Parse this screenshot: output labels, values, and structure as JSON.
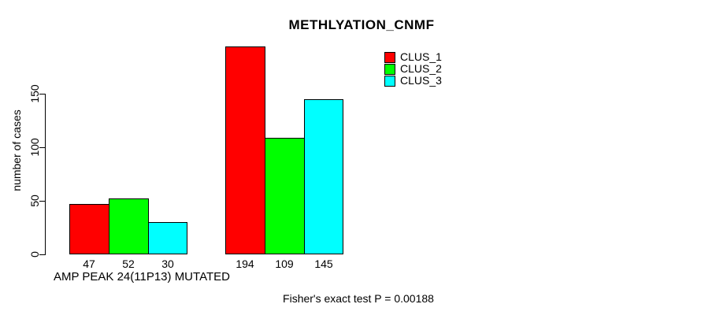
{
  "chart_data": {
    "type": "bar",
    "title": "METHLYATION_CNMF",
    "ylabel": "number of cases",
    "xlabel": "AMP PEAK 24(11P13) MUTATED",
    "yticks": [
      0,
      50,
      100,
      150
    ],
    "ylim": [
      0,
      200
    ],
    "grid": false,
    "groups": 2,
    "series": [
      {
        "name": "CLUS_1",
        "color": "#ff0000",
        "values": [
          47,
          194
        ]
      },
      {
        "name": "CLUS_2",
        "color": "#00ff00",
        "values": [
          52,
          109
        ]
      },
      {
        "name": "CLUS_3",
        "color": "#00ffff",
        "values": [
          30,
          145
        ]
      }
    ],
    "value_labels_shown": true,
    "legend_position": "top-right",
    "annotation": "Fisher's exact test P = 0.00188"
  }
}
